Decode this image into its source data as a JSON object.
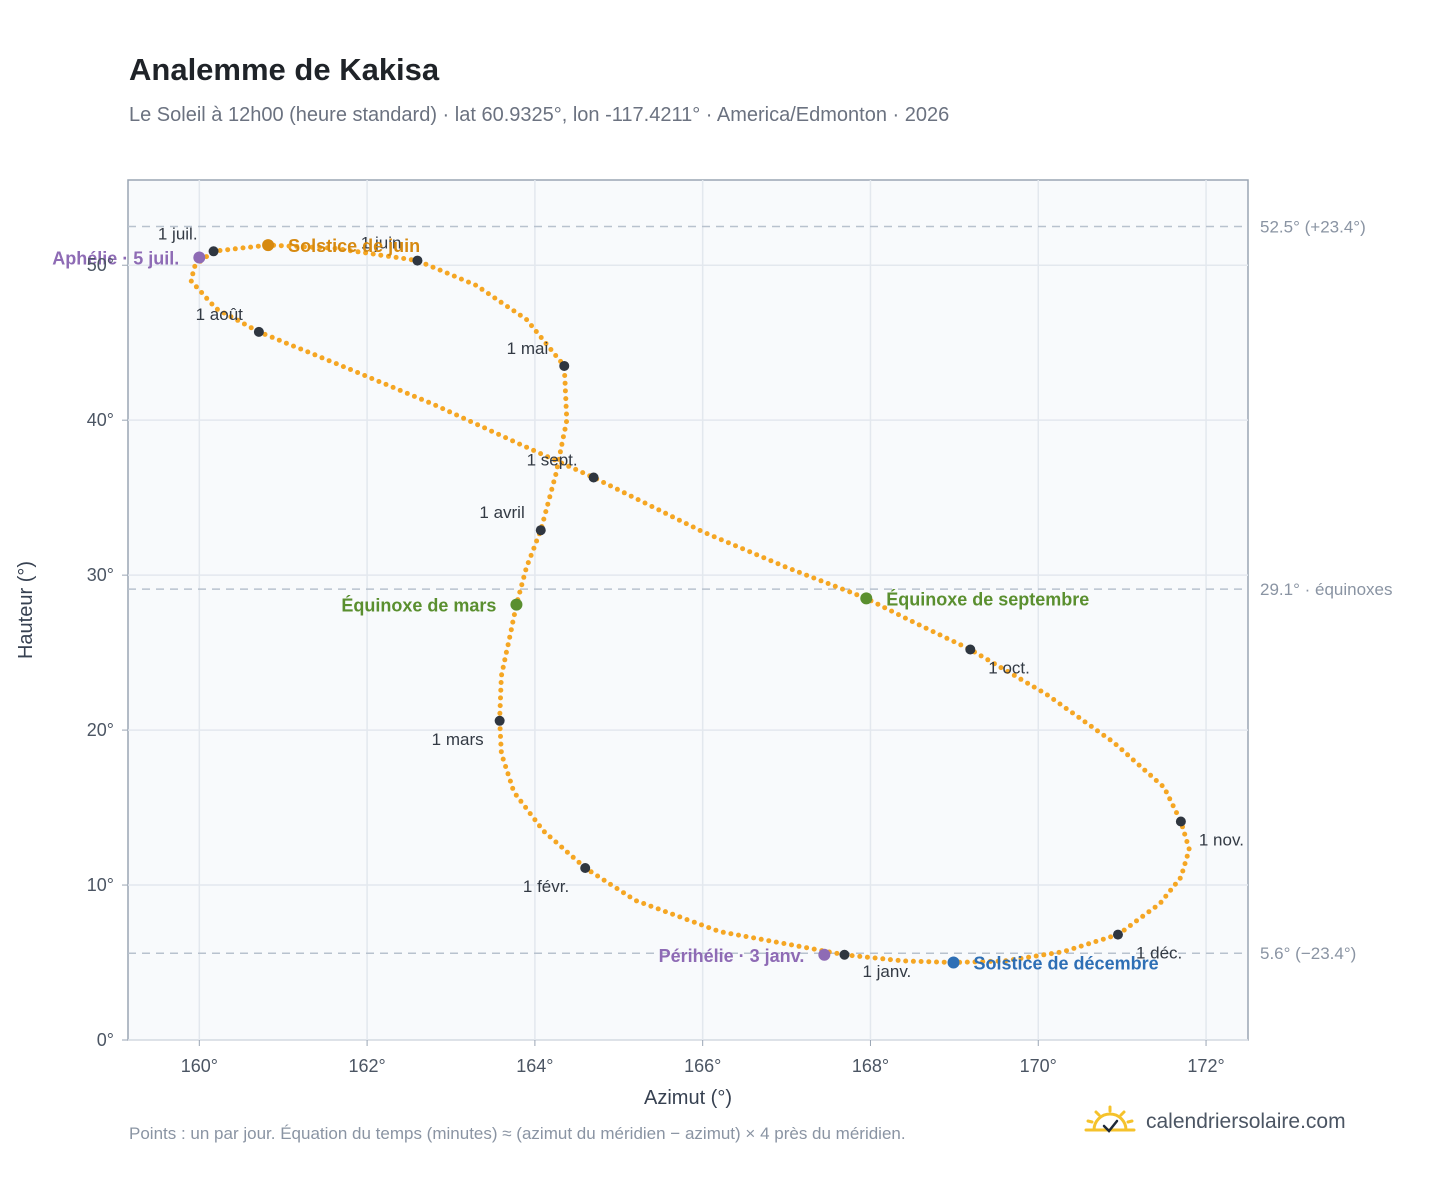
{
  "header": {
    "title": "Analemme de Kakisa",
    "subtitle": "Le Soleil à 12h00 (heure standard) · lat 60.9325°, lon -117.4211° · America/Edmonton · 2026"
  },
  "footer": {
    "note": "Points : un par jour. Équation du temps (minutes) ≈ (azimut du méridien − azimut) × 4 près du méridien.",
    "brand": "calendriersolaire.com"
  },
  "chart_data": {
    "type": "scatter",
    "xlabel": "Azimut (°)",
    "ylabel": "Hauteur (°)",
    "xlim": [
      159.15,
      172.5
    ],
    "ylim": [
      0,
      55.5
    ],
    "xticks": [
      160,
      162,
      164,
      166,
      168,
      170,
      172
    ],
    "xtick_labels": [
      "160°",
      "162°",
      "164°",
      "166°",
      "168°",
      "170°",
      "172°"
    ],
    "yticks": [
      0,
      10,
      20,
      30,
      40,
      50
    ],
    "ytick_labels": [
      "0°",
      "10°",
      "20°",
      "30°",
      "40°",
      "50°"
    ],
    "grid": true,
    "colors": {
      "curve": "#f5a623",
      "month_marker": "#2f3640",
      "solstice_june": "#d68910",
      "solstice_december": "#2e6fb5",
      "equinox": "#5a8f2f",
      "apsis": "#8e6bb5",
      "reference_line": "#b8c2ce",
      "plot_background": "#f8fafc"
    },
    "reference_lines": [
      {
        "y": 52.5,
        "label": "52.5° (+23.4°)"
      },
      {
        "y": 29.1,
        "label": "29.1° · équinoxes"
      },
      {
        "y": 5.6,
        "label": "5.6° (−23.4°)"
      }
    ],
    "month_markers": [
      {
        "label": "1 janv.",
        "az": 167.69,
        "alt": 5.5,
        "anchor": "start",
        "dx": 18,
        "dy": 22
      },
      {
        "label": "1 févr.",
        "az": 164.6,
        "alt": 11.1,
        "anchor": "end",
        "dx": -16,
        "dy": 24
      },
      {
        "label": "1 mars",
        "az": 163.58,
        "alt": 20.6,
        "anchor": "end",
        "dx": -16,
        "dy": 24
      },
      {
        "label": "1 avril",
        "az": 164.07,
        "alt": 32.9,
        "anchor": "end",
        "dx": -16,
        "dy": -12
      },
      {
        "label": "1 mai",
        "az": 164.35,
        "alt": 43.5,
        "anchor": "end",
        "dx": -16,
        "dy": -12
      },
      {
        "label": "1 juin",
        "az": 162.6,
        "alt": 50.3,
        "anchor": "end",
        "dx": -16,
        "dy": -12
      },
      {
        "label": "1 juil.",
        "az": 160.17,
        "alt": 50.9,
        "anchor": "end",
        "dx": -16,
        "dy": -12
      },
      {
        "label": "1 août",
        "az": 160.71,
        "alt": 45.7,
        "anchor": "end",
        "dx": -16,
        "dy": -12
      },
      {
        "label": "1 sept.",
        "az": 164.7,
        "alt": 36.3,
        "anchor": "end",
        "dx": -16,
        "dy": -12
      },
      {
        "label": "1 oct.",
        "az": 169.19,
        "alt": 25.2,
        "anchor": "start",
        "dx": 18,
        "dy": 24
      },
      {
        "label": "1 nov.",
        "az": 171.7,
        "alt": 14.1,
        "anchor": "start",
        "dx": 18,
        "dy": 24
      },
      {
        "label": "1 déc.",
        "az": 170.95,
        "alt": 6.8,
        "anchor": "start",
        "dx": 18,
        "dy": 24
      }
    ],
    "events": [
      {
        "label": "Solstice de juin",
        "az": 160.82,
        "alt": 51.3,
        "color": "#d68910",
        "anchor": "start",
        "dx": 20,
        "dy": 7
      },
      {
        "label": "Équinoxe de mars",
        "az": 163.78,
        "alt": 28.1,
        "color": "#5a8f2f",
        "anchor": "end",
        "dx": -20,
        "dy": 7
      },
      {
        "label": "Équinoxe de septembre",
        "az": 167.95,
        "alt": 28.5,
        "color": "#5a8f2f",
        "anchor": "start",
        "dx": 20,
        "dy": 7
      },
      {
        "label": "Solstice de décembre",
        "az": 168.99,
        "alt": 5.0,
        "color": "#2e6fb5",
        "anchor": "start",
        "dx": 20,
        "dy": 7
      },
      {
        "label": "Aphélie · 5 juil.",
        "az": 160.0,
        "alt": 50.5,
        "color": "#8e6bb5",
        "anchor": "end",
        "dx": -20,
        "dy": 7
      },
      {
        "label": "Périhélie · 3 janv.",
        "az": 167.45,
        "alt": 5.5,
        "color": "#8e6bb5",
        "anchor": "end",
        "dx": -20,
        "dy": 7
      }
    ],
    "curve_path": [
      [
        167.69,
        5.5
      ],
      [
        166.2,
        7.0
      ],
      [
        165.2,
        9.0
      ],
      [
        164.6,
        11.1
      ],
      [
        164.1,
        13.5
      ],
      [
        163.75,
        16.0
      ],
      [
        163.6,
        18.5
      ],
      [
        163.58,
        20.6
      ],
      [
        163.6,
        23.5
      ],
      [
        163.7,
        26.0
      ],
      [
        163.78,
        28.1
      ],
      [
        163.9,
        30.5
      ],
      [
        164.07,
        32.9
      ],
      [
        164.25,
        36.5
      ],
      [
        164.38,
        40.0
      ],
      [
        164.35,
        43.5
      ],
      [
        163.9,
        46.5
      ],
      [
        163.3,
        48.7
      ],
      [
        162.6,
        50.3
      ],
      [
        161.6,
        51.1
      ],
      [
        160.82,
        51.3
      ],
      [
        160.17,
        50.9
      ],
      [
        159.95,
        50.0
      ],
      [
        159.9,
        49.0
      ],
      [
        160.2,
        47.2
      ],
      [
        160.71,
        45.7
      ],
      [
        161.7,
        43.5
      ],
      [
        162.8,
        41.0
      ],
      [
        163.8,
        38.5
      ],
      [
        164.7,
        36.3
      ],
      [
        166.0,
        32.8
      ],
      [
        167.0,
        30.5
      ],
      [
        167.95,
        28.5
      ],
      [
        168.5,
        27.0
      ],
      [
        169.19,
        25.2
      ],
      [
        170.1,
        22.3
      ],
      [
        170.9,
        19.2
      ],
      [
        171.5,
        16.3
      ],
      [
        171.7,
        14.1
      ],
      [
        171.8,
        12.3
      ],
      [
        171.7,
        10.5
      ],
      [
        171.45,
        8.8
      ],
      [
        170.95,
        6.8
      ],
      [
        170.3,
        5.7
      ],
      [
        169.6,
        5.1
      ],
      [
        168.99,
        5.0
      ],
      [
        168.4,
        5.1
      ],
      [
        167.69,
        5.5
      ]
    ]
  }
}
